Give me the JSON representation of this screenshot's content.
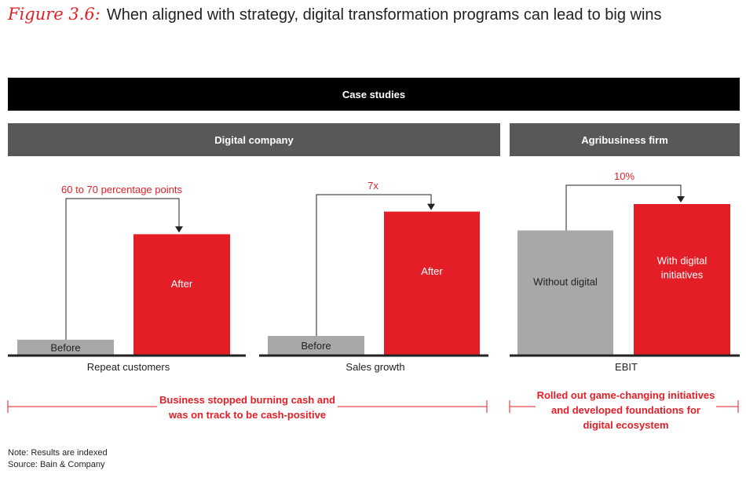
{
  "figure": {
    "label": "Figure 3.6:",
    "title": "When aligned with strategy, digital transformation programs can lead to big wins"
  },
  "headers": {
    "case_studies": "Case studies",
    "digital_company": "Digital company",
    "agribusiness": "Agribusiness firm"
  },
  "chart_data": [
    {
      "type": "bar",
      "xlabel": "Repeat customers",
      "categories": [
        "Before",
        "After"
      ],
      "values": [
        2,
        16
      ],
      "colors": [
        "#a7a8aa",
        "#e41e26"
      ],
      "annotation": "60 to 70 percentage points",
      "note": "Results are indexed"
    },
    {
      "type": "bar",
      "xlabel": "Sales growth",
      "categories": [
        "Before",
        "After"
      ],
      "values": [
        2.5,
        19
      ],
      "colors": [
        "#a7a8aa",
        "#e41e26"
      ],
      "annotation": "7x"
    },
    {
      "type": "bar",
      "xlabel": "EBIT",
      "categories": [
        "Without digital",
        "With digital initiatives"
      ],
      "values": [
        16.5,
        20
      ],
      "colors": [
        "#a7a8aa",
        "#e41e26"
      ],
      "annotation": "10%"
    }
  ],
  "outcomes": {
    "digital_company": "Business stopped burning cash and was on track to be cash-positive",
    "agribusiness": "Rolled out game-changing initiatives and developed foundations for digital ecosystem"
  },
  "notes": {
    "note": "Note: Results are indexed",
    "source": "Source: Bain & Company"
  },
  "colors": {
    "accent_red": "#e41e26",
    "bar_gray": "#a7a8aa",
    "header_gray": "#58585a",
    "header_black": "#000000"
  }
}
